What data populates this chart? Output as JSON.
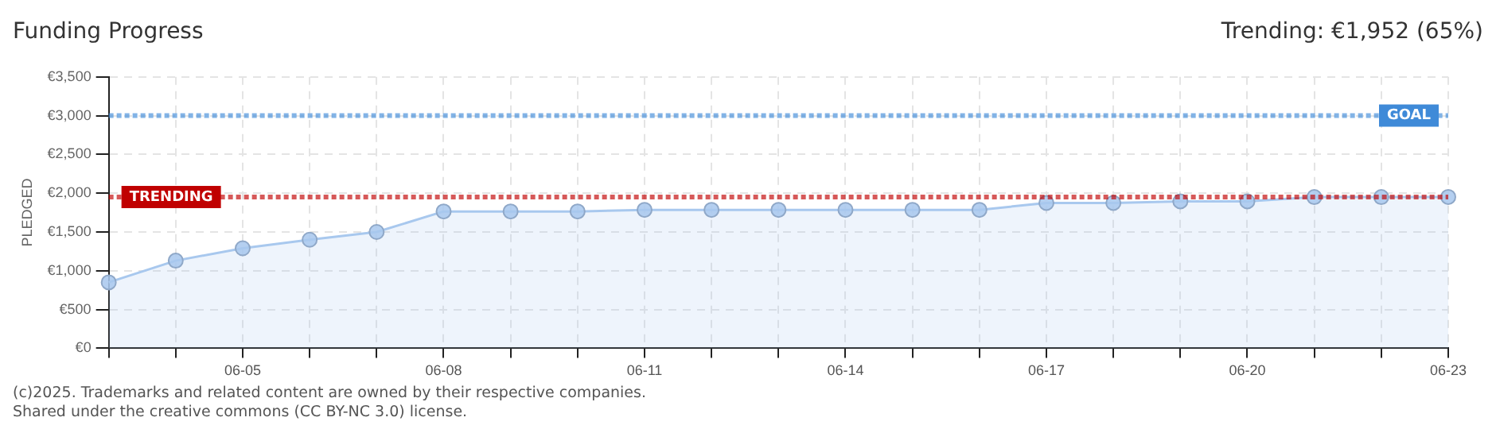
{
  "chart_data": {
    "type": "area",
    "title": "Funding Progress",
    "subtitle": "Trending:  €1,952 (65%)",
    "ylabel": "PLEDGED",
    "categories": [
      null,
      null,
      "06-05",
      null,
      null,
      "06-08",
      null,
      null,
      "06-11",
      null,
      null,
      "06-14",
      null,
      null,
      "06-17",
      null,
      null,
      "06-20",
      null,
      null,
      "06-23"
    ],
    "series": [
      {
        "color": "#a8c8ee",
        "values": [
          850,
          1130,
          1290,
          1400,
          1500,
          1765,
          1765,
          1765,
          1785,
          1785,
          1785,
          1785,
          1785,
          1785,
          1875,
          1875,
          1895,
          1895,
          1950,
          1950,
          1952
        ]
      }
    ],
    "ylim": [
      0,
      3500
    ],
    "yticks": [
      {
        "value": 0,
        "label": "€0"
      },
      {
        "value": 500,
        "label": "€500"
      },
      {
        "value": 1000,
        "label": "€1,000"
      },
      {
        "value": 1500,
        "label": "€1,500"
      },
      {
        "value": 2000,
        "label": "€2,000"
      },
      {
        "value": 2500,
        "label": "€2,500"
      },
      {
        "value": 3000,
        "label": "€3,000"
      },
      {
        "value": 3500,
        "label": "€3,500"
      }
    ],
    "ref_lines": [
      {
        "axis": "y",
        "value": 3000,
        "label": "GOAL",
        "color": "#3f8ad8",
        "line_style": "dotted"
      },
      {
        "axis": "y",
        "value": 1952,
        "label": "TRENDING",
        "color": "#c00000",
        "line_style": "dotted"
      }
    ],
    "grid": true,
    "marker": "circle",
    "legend": false,
    "annotations": [
      "(c)2025. Trademarks and related content are owned by their respective companies.",
      "Shared under the creative commons (CC BY-NC 3.0) license."
    ]
  }
}
